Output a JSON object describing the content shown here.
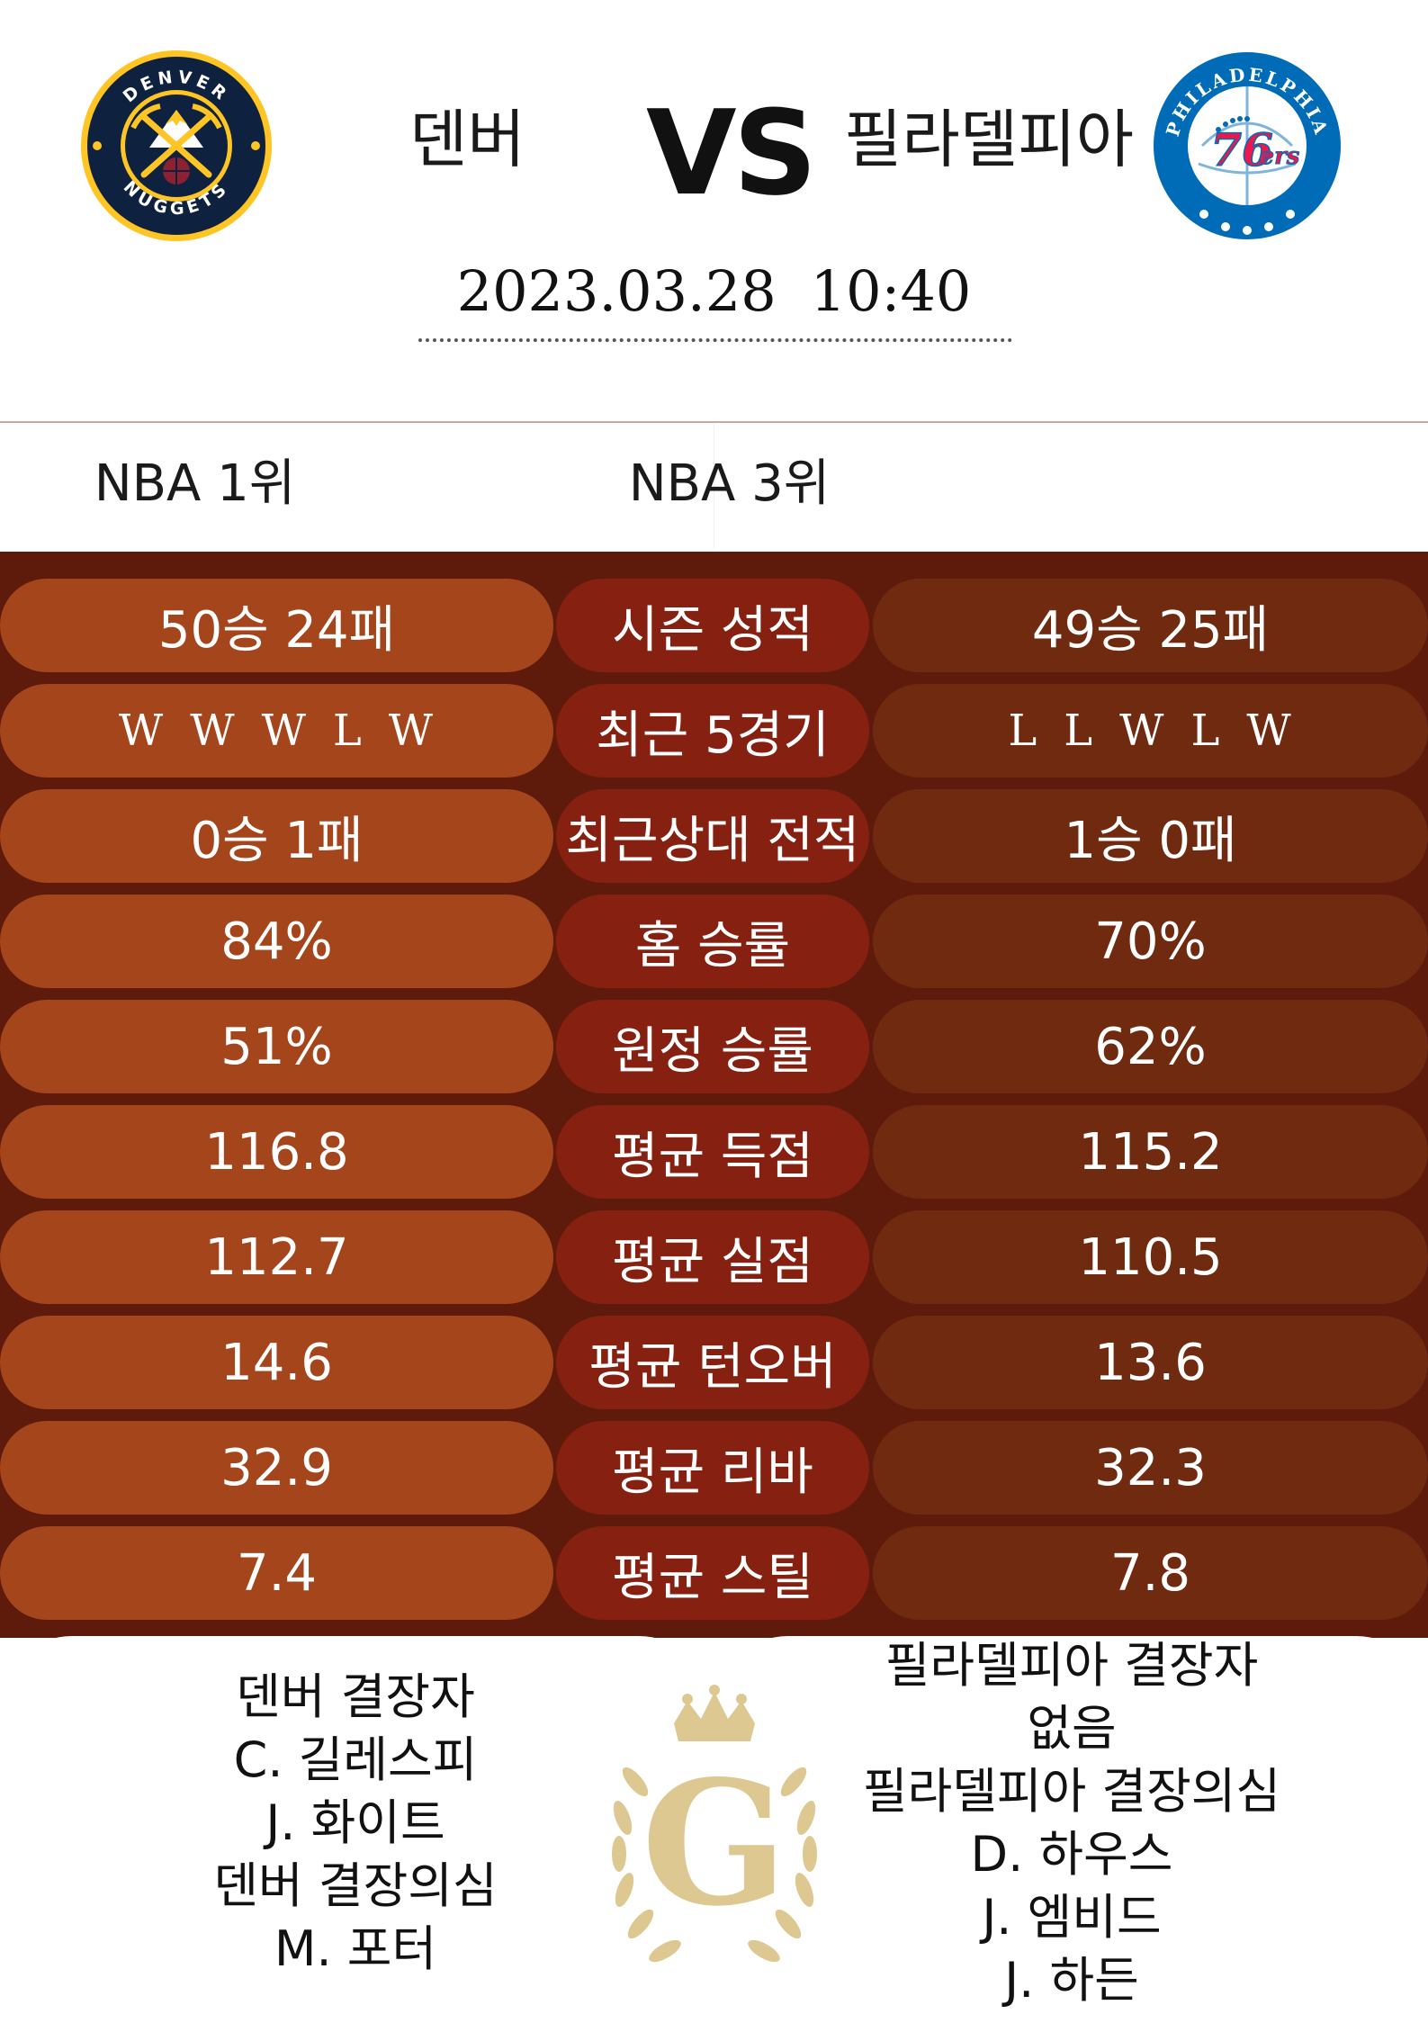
{
  "header": {
    "home_team": "덴버",
    "vs": "VS",
    "away_team": "필라델피아",
    "date": "2023.03.28",
    "time": "10:40",
    "home_logo": {
      "ring_top": "DENVER",
      "ring_bottom": "NUGGETS",
      "colors": {
        "navy": "#0e2240",
        "gold": "#fec524",
        "red": "#8b2131",
        "blue": "#1d428a"
      }
    },
    "away_logo": {
      "ring": "PHILADELPHIA",
      "num": "76",
      "ers": "ers",
      "colors": {
        "blue": "#006bb6",
        "red": "#ed174c"
      }
    }
  },
  "ranks": {
    "home": "NBA 1위",
    "away": "NBA 3위"
  },
  "stats": [
    {
      "label": "시즌 성적",
      "home": "50승 24패",
      "away": "49승 25패"
    },
    {
      "label": "최근 5경기",
      "home_form": [
        "W",
        "W",
        "W",
        "L",
        "W"
      ],
      "away_form": [
        "L",
        "L",
        "W",
        "L",
        "W"
      ]
    },
    {
      "label": "최근상대 전적",
      "home": "0승 1패",
      "away": "1승 0패"
    },
    {
      "label": "홈 승률",
      "home": "84%",
      "away": "70%"
    },
    {
      "label": "원정 승률",
      "home": "51%",
      "away": "62%"
    },
    {
      "label": "평균 득점",
      "home": "116.8",
      "away": "115.2"
    },
    {
      "label": "평균 실점",
      "home": "112.7",
      "away": "110.5"
    },
    {
      "label": "평균 턴오버",
      "home": "14.6",
      "away": "13.6"
    },
    {
      "label": "평균 리바",
      "home": "32.9",
      "away": "32.3"
    },
    {
      "label": "평균 스틸",
      "home": "7.4",
      "away": "7.8"
    }
  ],
  "injuries": {
    "home": [
      "덴버 결장자",
      "C. 길레스피",
      "J. 화이트",
      "덴버 결장의심",
      "M. 포터"
    ],
    "away": [
      "필라델피아 결장자",
      "없음",
      "필라델피아 결장의심",
      "D. 하우스",
      "J. 엠비드",
      "J. 하든"
    ]
  },
  "emblem": {
    "letter": "G",
    "color": "#d9bf7f"
  },
  "colors": {
    "board_bg": "#5e1a0a",
    "home_pill": "#a5451b",
    "label_pill": "#862010",
    "away_pill": "#6f2a0f"
  }
}
